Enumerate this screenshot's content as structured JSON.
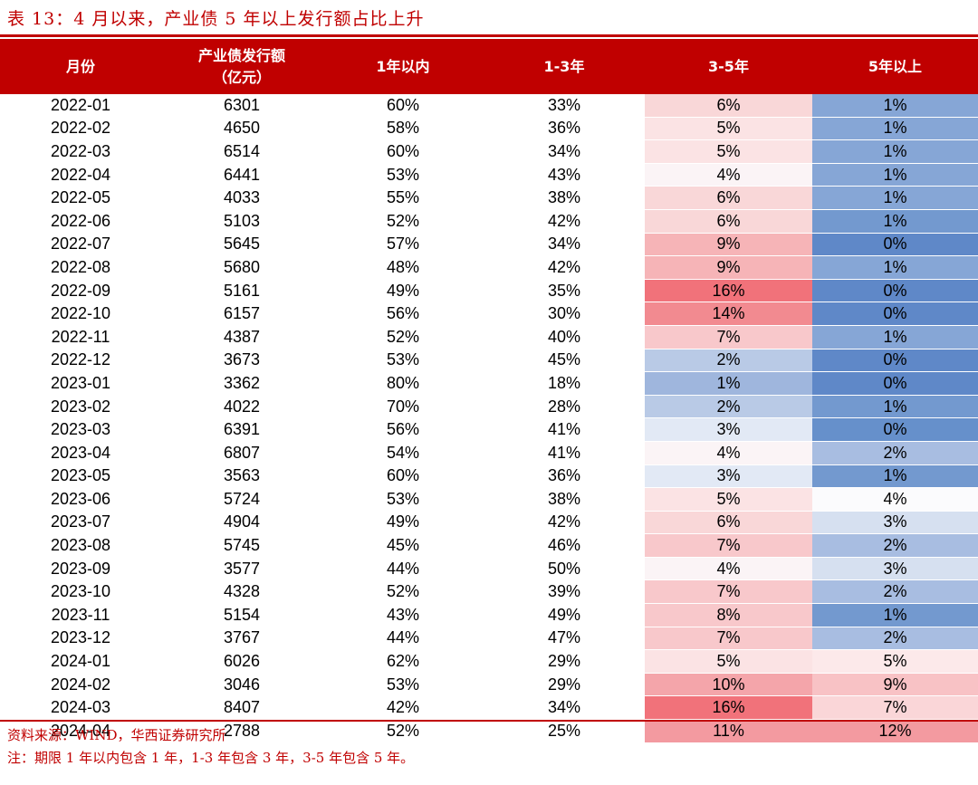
{
  "caption": "表 13：4 月以来，产业债 5 年以上发行额占比上升",
  "headers": [
    "月份",
    "产业债发行额\n（亿元）",
    "1年以内",
    "1-3年",
    "3-5年",
    "5年以上"
  ],
  "rows": [
    [
      "2022-01",
      "6301",
      "60%",
      "33%",
      "6%",
      "1%"
    ],
    [
      "2022-02",
      "4650",
      "58%",
      "36%",
      "5%",
      "1%"
    ],
    [
      "2022-03",
      "6514",
      "60%",
      "34%",
      "5%",
      "1%"
    ],
    [
      "2022-04",
      "6441",
      "53%",
      "43%",
      "4%",
      "1%"
    ],
    [
      "2022-05",
      "4033",
      "55%",
      "38%",
      "6%",
      "1%"
    ],
    [
      "2022-06",
      "5103",
      "52%",
      "42%",
      "6%",
      "1%"
    ],
    [
      "2022-07",
      "5645",
      "57%",
      "34%",
      "9%",
      "0%"
    ],
    [
      "2022-08",
      "5680",
      "48%",
      "42%",
      "9%",
      "1%"
    ],
    [
      "2022-09",
      "5161",
      "49%",
      "35%",
      "16%",
      "0%"
    ],
    [
      "2022-10",
      "6157",
      "56%",
      "30%",
      "14%",
      "0%"
    ],
    [
      "2022-11",
      "4387",
      "52%",
      "40%",
      "7%",
      "1%"
    ],
    [
      "2022-12",
      "3673",
      "53%",
      "45%",
      "2%",
      "0%"
    ],
    [
      "2023-01",
      "3362",
      "80%",
      "18%",
      "1%",
      "0%"
    ],
    [
      "2023-02",
      "4022",
      "70%",
      "28%",
      "2%",
      "1%"
    ],
    [
      "2023-03",
      "6391",
      "56%",
      "41%",
      "3%",
      "0%"
    ],
    [
      "2023-04",
      "6807",
      "54%",
      "41%",
      "4%",
      "2%"
    ],
    [
      "2023-05",
      "3563",
      "60%",
      "36%",
      "3%",
      "1%"
    ],
    [
      "2023-06",
      "5724",
      "53%",
      "38%",
      "5%",
      "4%"
    ],
    [
      "2023-07",
      "4904",
      "49%",
      "42%",
      "6%",
      "3%"
    ],
    [
      "2023-08",
      "5745",
      "45%",
      "46%",
      "7%",
      "2%"
    ],
    [
      "2023-09",
      "3577",
      "44%",
      "50%",
      "4%",
      "3%"
    ],
    [
      "2023-10",
      "4328",
      "52%",
      "39%",
      "7%",
      "2%"
    ],
    [
      "2023-11",
      "5154",
      "43%",
      "49%",
      "8%",
      "1%"
    ],
    [
      "2023-12",
      "3767",
      "44%",
      "47%",
      "7%",
      "2%"
    ],
    [
      "2024-01",
      "6026",
      "62%",
      "29%",
      "5%",
      "5%"
    ],
    [
      "2024-02",
      "3046",
      "53%",
      "29%",
      "10%",
      "9%"
    ],
    [
      "2024-03",
      "8407",
      "42%",
      "34%",
      "16%",
      "7%"
    ],
    [
      "2024-04",
      "2788",
      "52%",
      "25%",
      "11%",
      "12%"
    ]
  ],
  "heat": {
    "col5": [
      "#f9d7d8",
      "#fbe3e4",
      "#fbe3e4",
      "#fbf4f6",
      "#f9d7d8",
      "#f9d7d8",
      "#f6b4b7",
      "#f6b4b7",
      "#f1727a",
      "#f28a90",
      "#f8c8cb",
      "#b9cae6",
      "#9fb6dd",
      "#b9cae6",
      "#e2e9f5",
      "#fbf4f6",
      "#e2e9f5",
      "#fbe3e4",
      "#f9d7d8",
      "#f8c8cb",
      "#fbf4f6",
      "#f8c8cb",
      "#f8c8cb",
      "#f8c8cb",
      "#fbe3e4",
      "#f4a5aa",
      "#f1727a",
      "#f39aa0"
    ],
    "col6": [
      "#86a6d6",
      "#86a6d6",
      "#86a6d6",
      "#86a6d6",
      "#86a6d6",
      "#7399cf",
      "#5f88c8",
      "#86a6d6",
      "#5f88c8",
      "#5f88c8",
      "#86a6d6",
      "#5f88c8",
      "#5f88c8",
      "#7399cf",
      "#6690cb",
      "#a8bde1",
      "#7399cf",
      "#fbfbfd",
      "#d6e0f0",
      "#a8bde1",
      "#d6e0f0",
      "#a8bde1",
      "#7399cf",
      "#a8bde1",
      "#fce9ea",
      "#f8c2c5",
      "#fad6d8",
      "#f39aa0"
    ]
  },
  "notes": {
    "source": "资料来源：WIND，华西证券研究所",
    "remark": "注：期限 1 年以内包含 1 年，1-3 年包含 3 年，3-5 年包含 5 年。"
  }
}
